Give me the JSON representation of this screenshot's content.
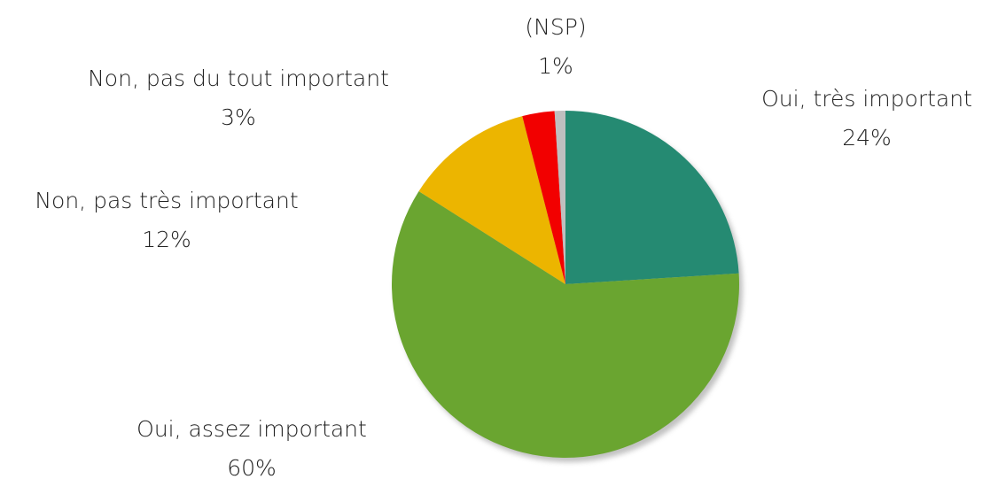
{
  "chart_data": {
    "type": "pie",
    "categories": [
      "Oui, très important",
      "Oui, assez important",
      "Non, pas très important",
      "Non, pas du tout important",
      "(NSP)"
    ],
    "values": [
      24,
      60,
      12,
      3,
      1
    ],
    "value_labels": [
      "24%",
      "60%",
      "12%",
      "3%",
      "1%"
    ],
    "colors": [
      "#258a72",
      "#6aa530",
      "#ecb500",
      "#f20000",
      "#bfbfbf"
    ]
  }
}
